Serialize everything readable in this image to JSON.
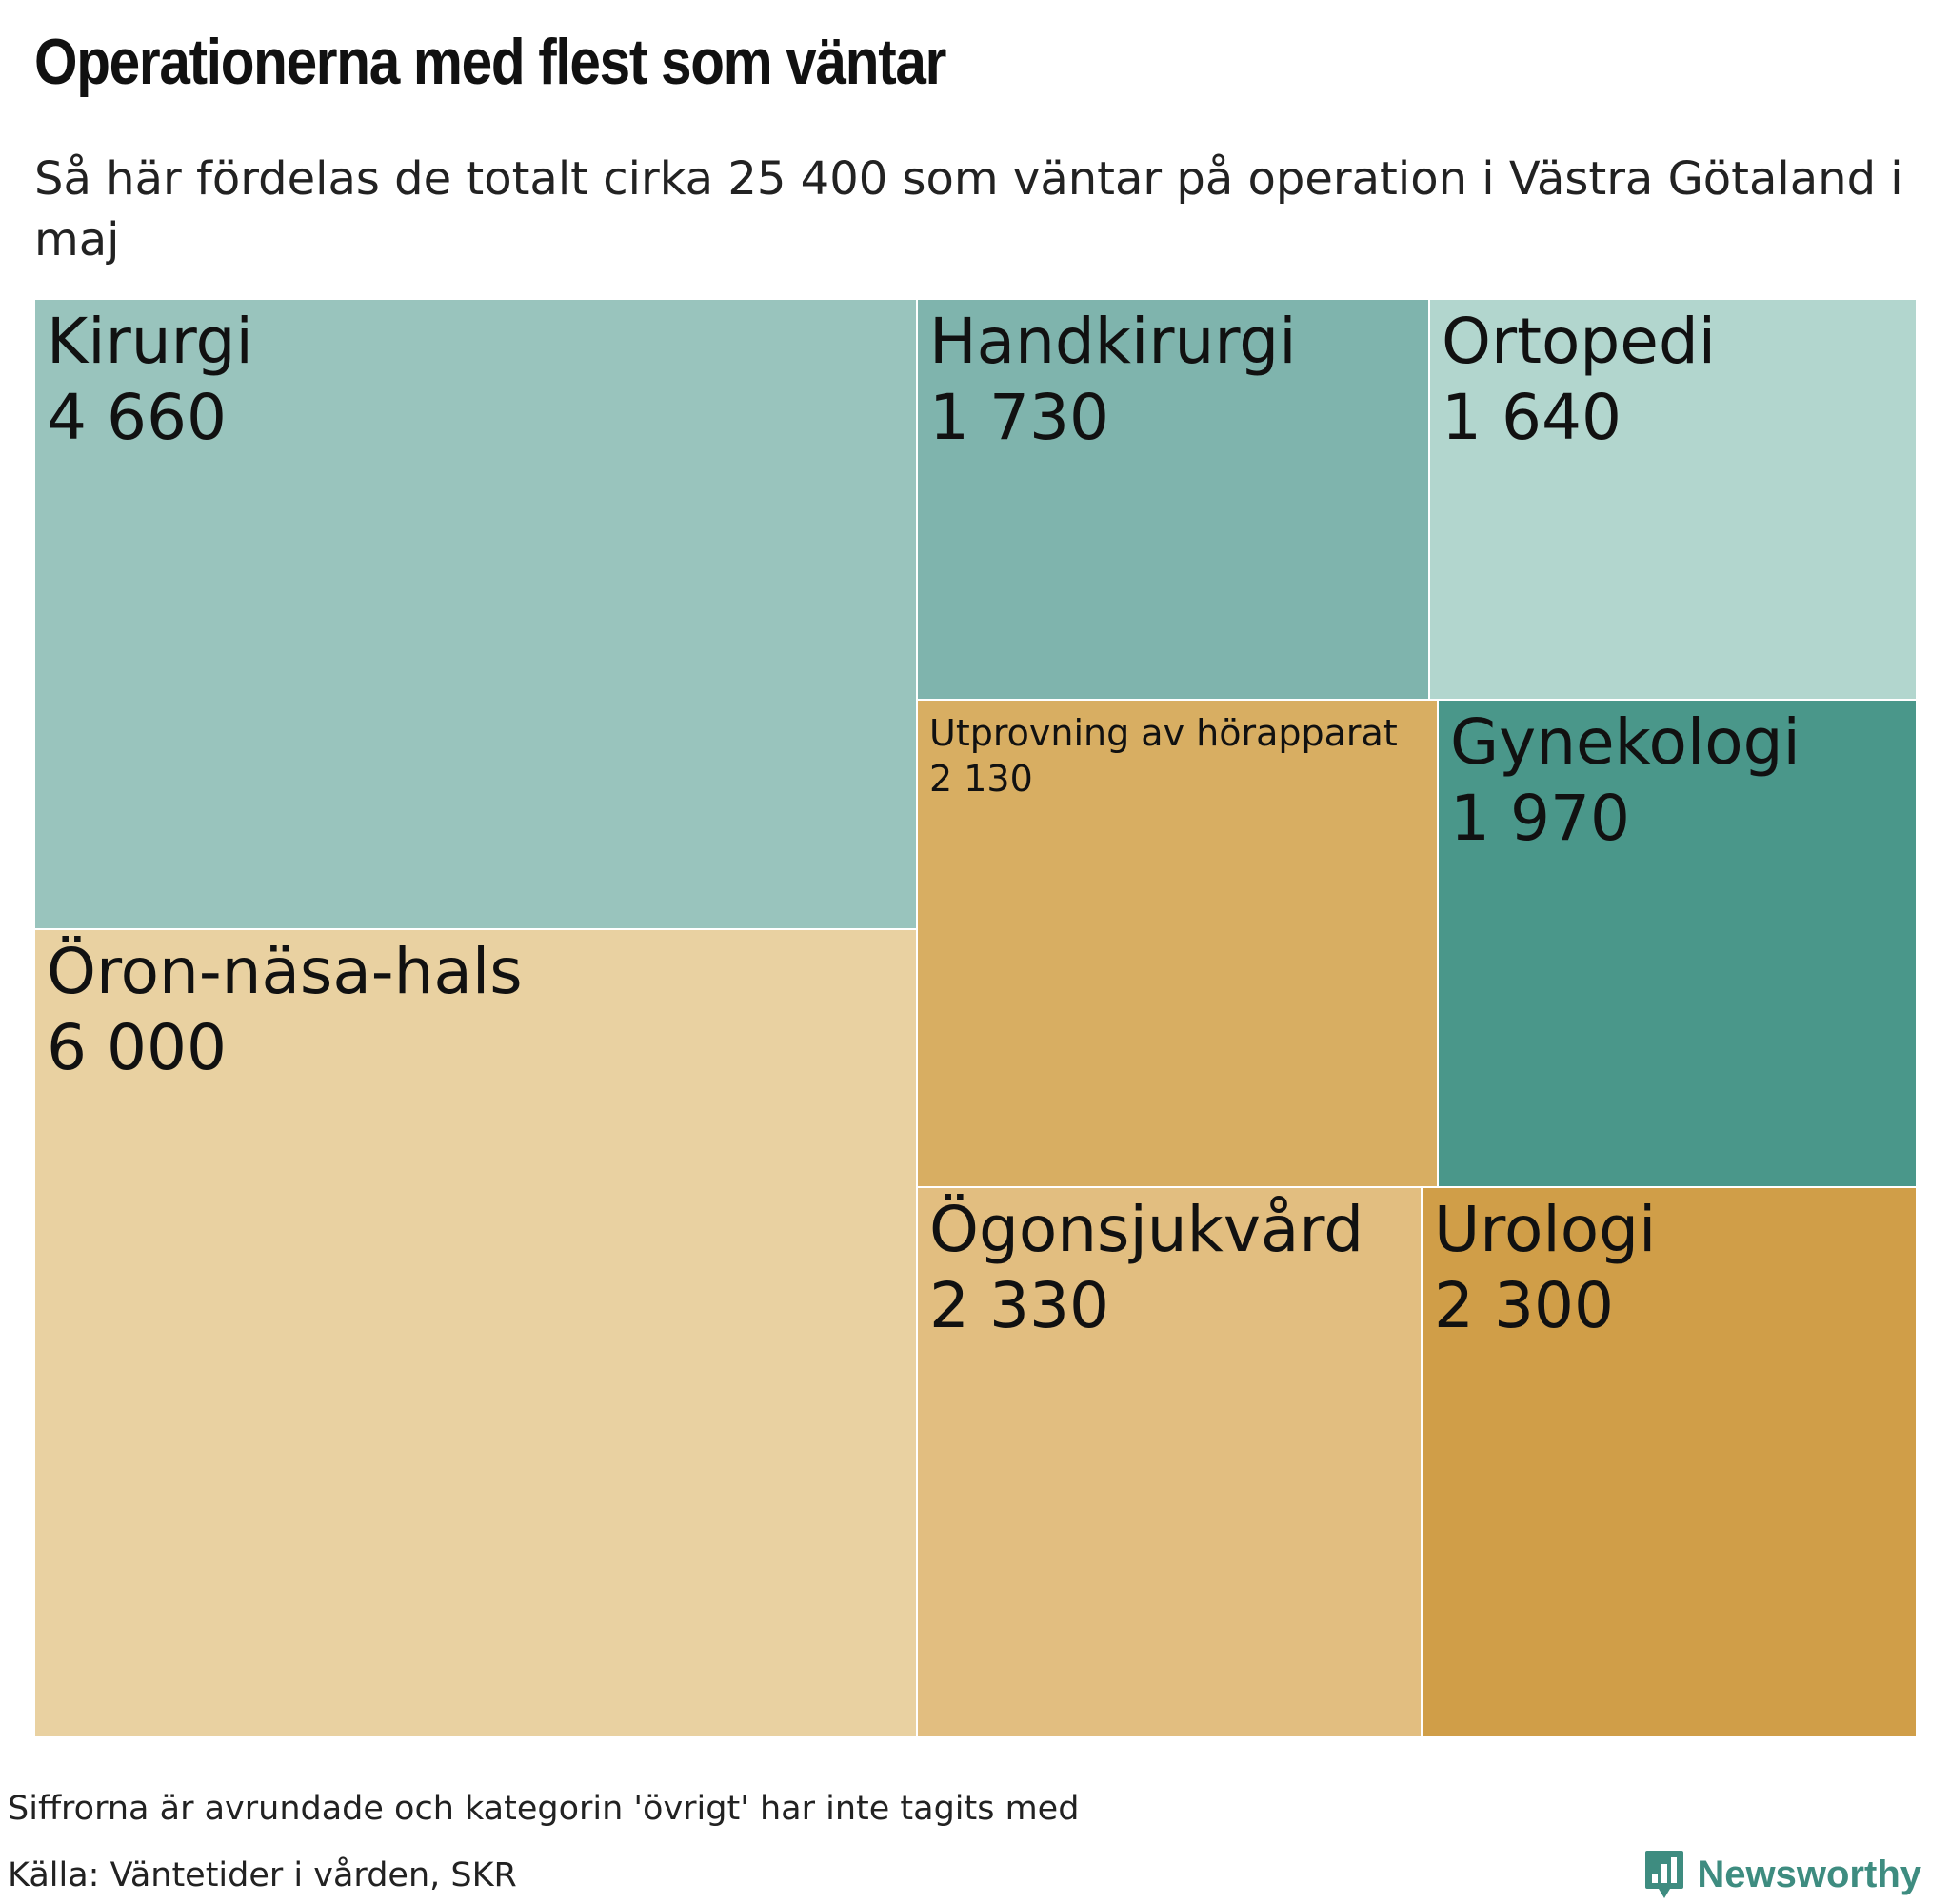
{
  "header": {
    "title": "Operationerna med flest som väntar",
    "subtitle": "Så här fördelas de totalt cirka 25 400 som väntar på operation i Västra Götaland i maj"
  },
  "chart_data": {
    "type": "treemap",
    "title": "Operationerna med flest som väntar",
    "subtitle": "Så här fördelas de totalt cirka 25 400 som väntar på operation i Västra Götaland i maj",
    "items": [
      {
        "name": "Kirurgi",
        "value": 4660,
        "value_label": "4 660",
        "color": "#99c4bd"
      },
      {
        "name": "Öron-näsa-hals",
        "value": 6000,
        "value_label": "6 000",
        "color": "#e9d1a1"
      },
      {
        "name": "Handkirurgi",
        "value": 1730,
        "value_label": "1 730",
        "color": "#7fb4ad"
      },
      {
        "name": "Ortopedi",
        "value": 1640,
        "value_label": "1 640",
        "color": "#b2d6ce"
      },
      {
        "name": "Utprovning av hörapparat",
        "value": 2130,
        "value_label": "2 130",
        "color": "#d8ae62"
      },
      {
        "name": "Gynekologi",
        "value": 1970,
        "value_label": "1 970",
        "color": "#4a978a"
      },
      {
        "name": "Ögonsjukvård",
        "value": 2330,
        "value_label": "2 330",
        "color": "#e2be80"
      },
      {
        "name": "Urologi",
        "value": 2300,
        "value_label": "2 300",
        "color": "#d09e48"
      }
    ]
  },
  "footer": {
    "note": "Siffrorna är avrundade och kategorin 'övrigt' har inte tagits med",
    "source": "Källa: Väntetider i vården, SKR",
    "brand": "Newsworthy",
    "brand_color": "#3e8c80"
  }
}
